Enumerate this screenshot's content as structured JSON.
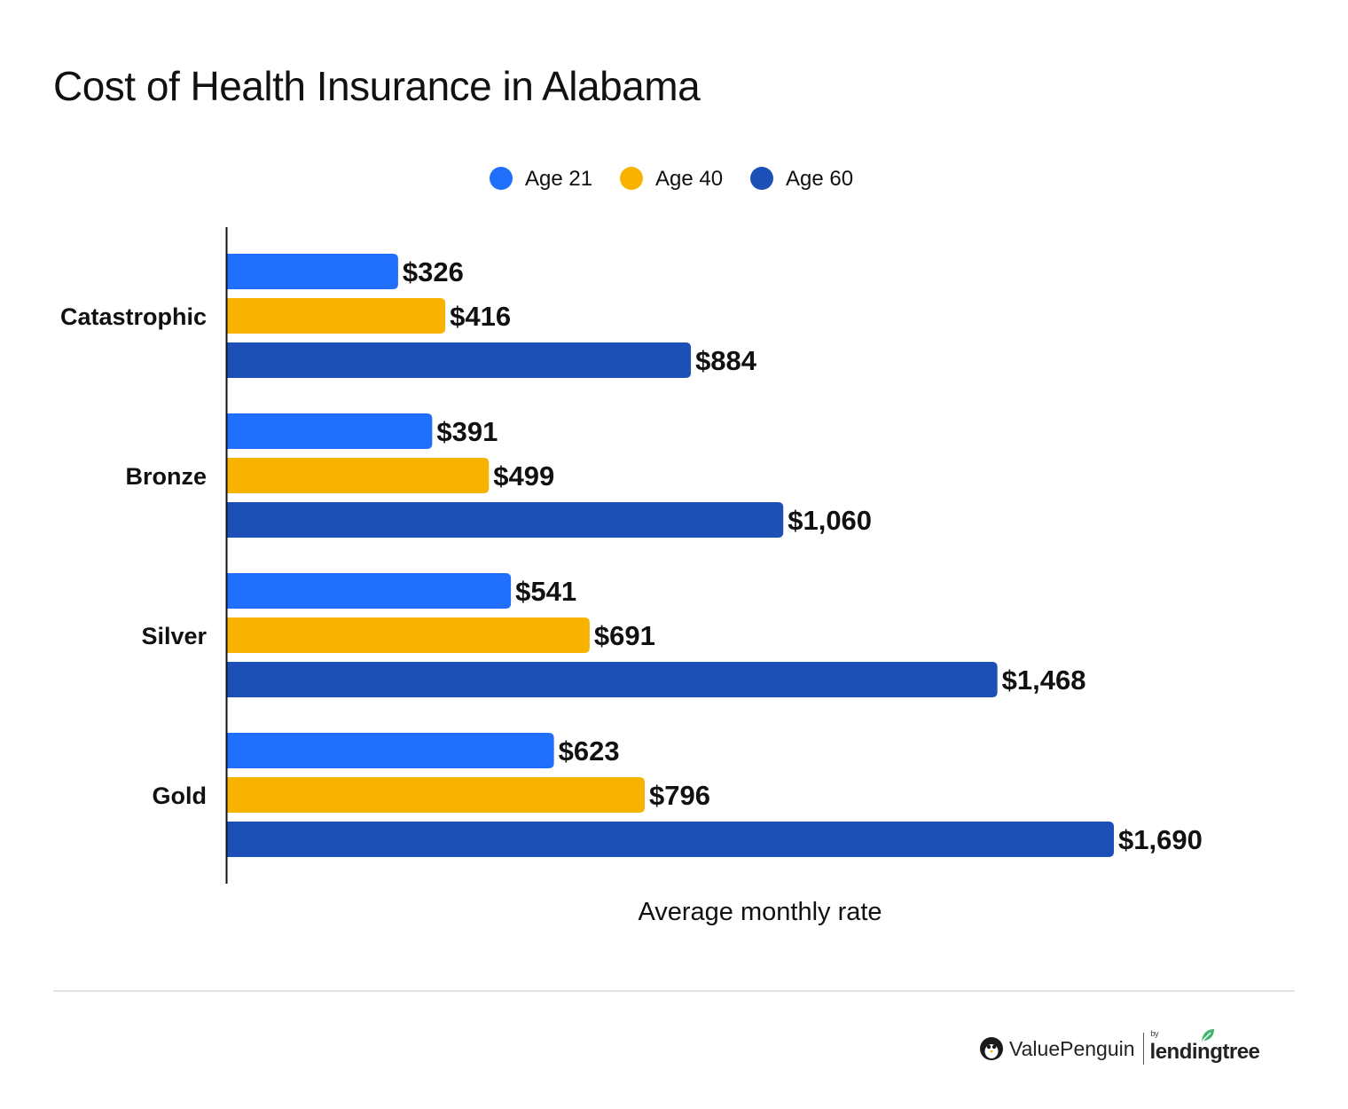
{
  "title": "Cost of Health Insurance in Alabama",
  "chart_data": {
    "type": "bar",
    "orientation": "horizontal",
    "title": "Cost of Health Insurance in Alabama",
    "xlabel": "Average monthly rate",
    "ylabel": "",
    "categories": [
      "Catastrophic",
      "Bronze",
      "Silver",
      "Gold"
    ],
    "series": [
      {
        "name": "Age 21",
        "color": "#1f6efc",
        "values": [
          326,
          391,
          541,
          623
        ],
        "labels": [
          "$326",
          "$391",
          "$541",
          "$623"
        ]
      },
      {
        "name": "Age 40",
        "color": "#f8b300",
        "values": [
          416,
          499,
          691,
          796
        ],
        "labels": [
          "$416",
          "$499",
          "$691",
          "$796"
        ]
      },
      {
        "name": "Age 60",
        "color": "#1c50b6",
        "values": [
          884,
          1060,
          1468,
          1690
        ],
        "labels": [
          "$884",
          "$1,060",
          "$1,468",
          "$1,690"
        ]
      }
    ],
    "xlim": [
      0,
      1690
    ],
    "grid": false,
    "legend_position": "top-center"
  },
  "brand": {
    "name": "ValuePenguin",
    "by": "by",
    "partner": "lendingtree",
    "icon": "penguin-icon",
    "partner_icon": "leaf-icon"
  }
}
